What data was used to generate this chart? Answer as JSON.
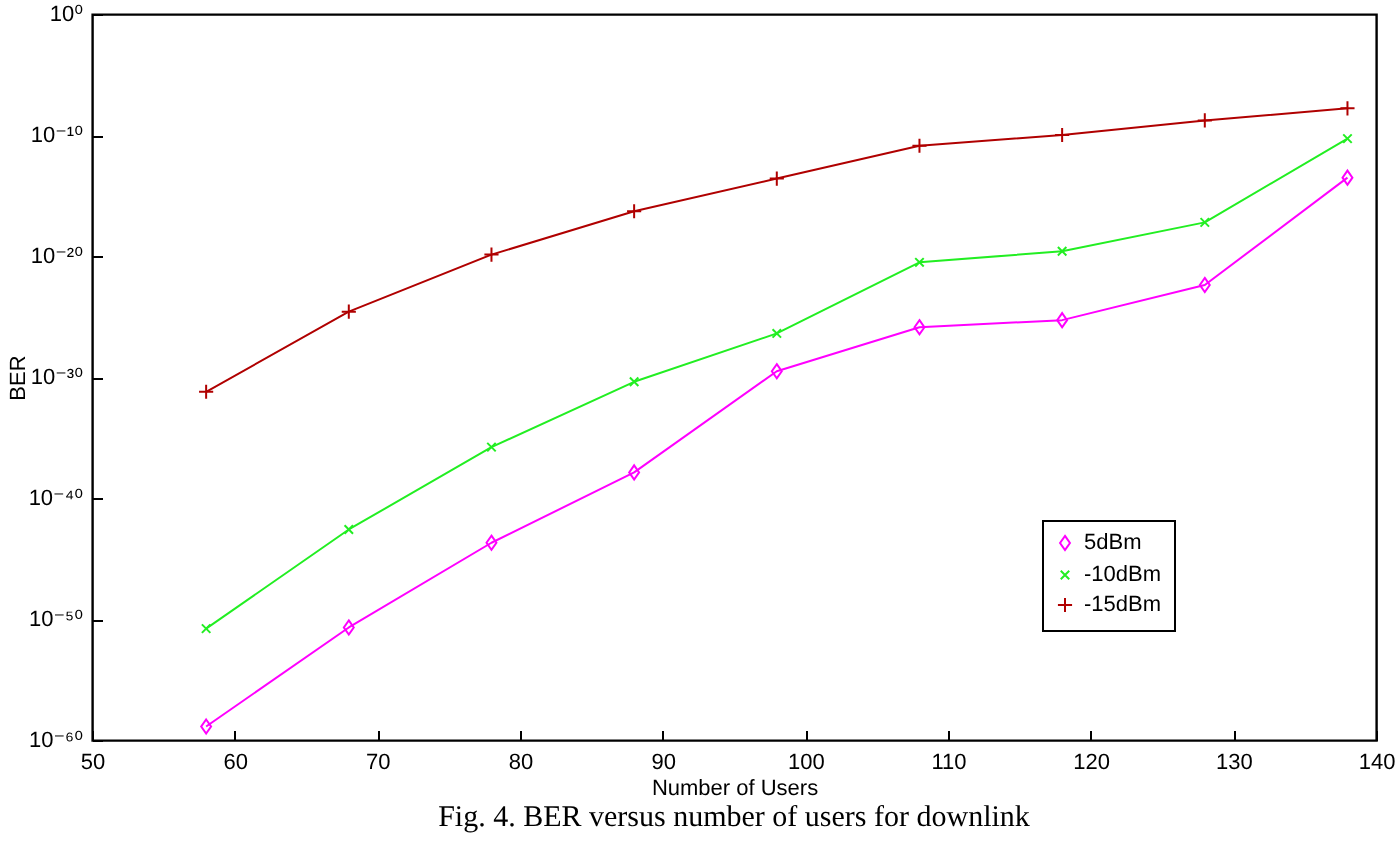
{
  "chart_data": {
    "type": "line",
    "xlabel": "Number of Users",
    "ylabel": "BER",
    "annotations": [
      "Fig. 4. BER versus number of users for downlink"
    ],
    "x": [
      58,
      68,
      78,
      88,
      98,
      108,
      118,
      128,
      138
    ],
    "series": [
      {
        "name": "5dBm",
        "color": "#ff00ff",
        "marker": "diamond",
        "values": [
          1.3e-59,
          2e-51,
          2e-44,
          1.3e-38,
          3e-30,
          1.3e-26,
          5e-26,
          4e-23,
          3e-14
        ]
      },
      {
        "name": "-10dBm",
        "color": "#22ee22",
        "marker": "cross",
        "values": [
          1.6e-51,
          2.5e-43,
          1.6e-36,
          4e-31,
          4e-27,
          3e-21,
          2.5e-20,
          6e-18,
          5e-11
        ]
      },
      {
        "name": "-15dBm",
        "color": "#b00000",
        "marker": "plus",
        "values": [
          6e-32,
          2.5e-25,
          1.3e-20,
          5e-17,
          2.5e-14,
          1.3e-11,
          1e-10,
          1.6e-09,
          1.6e-08
        ]
      }
    ],
    "log": "y",
    "xlim": [
      50,
      140
    ],
    "xticks": [
      50,
      60,
      70,
      80,
      90,
      100,
      110,
      120,
      130,
      140
    ],
    "ylim": [
      1e-60,
      1
    ],
    "yticks": [
      {
        "value": 1e-60,
        "label": "10⁻⁶⁰"
      },
      {
        "value": 1e-50,
        "label": "10⁻⁵⁰"
      },
      {
        "value": 1e-40,
        "label": "10⁻⁴⁰"
      },
      {
        "value": 1e-30,
        "label": "10⁻³⁰"
      },
      {
        "value": 1e-20,
        "label": "10⁻²⁰"
      },
      {
        "value": 1e-10,
        "label": "10⁻¹⁰"
      },
      {
        "value": 1,
        "label": "10⁰"
      }
    ],
    "grid": false,
    "legend": "bottom right",
    "line_style": "solid"
  }
}
